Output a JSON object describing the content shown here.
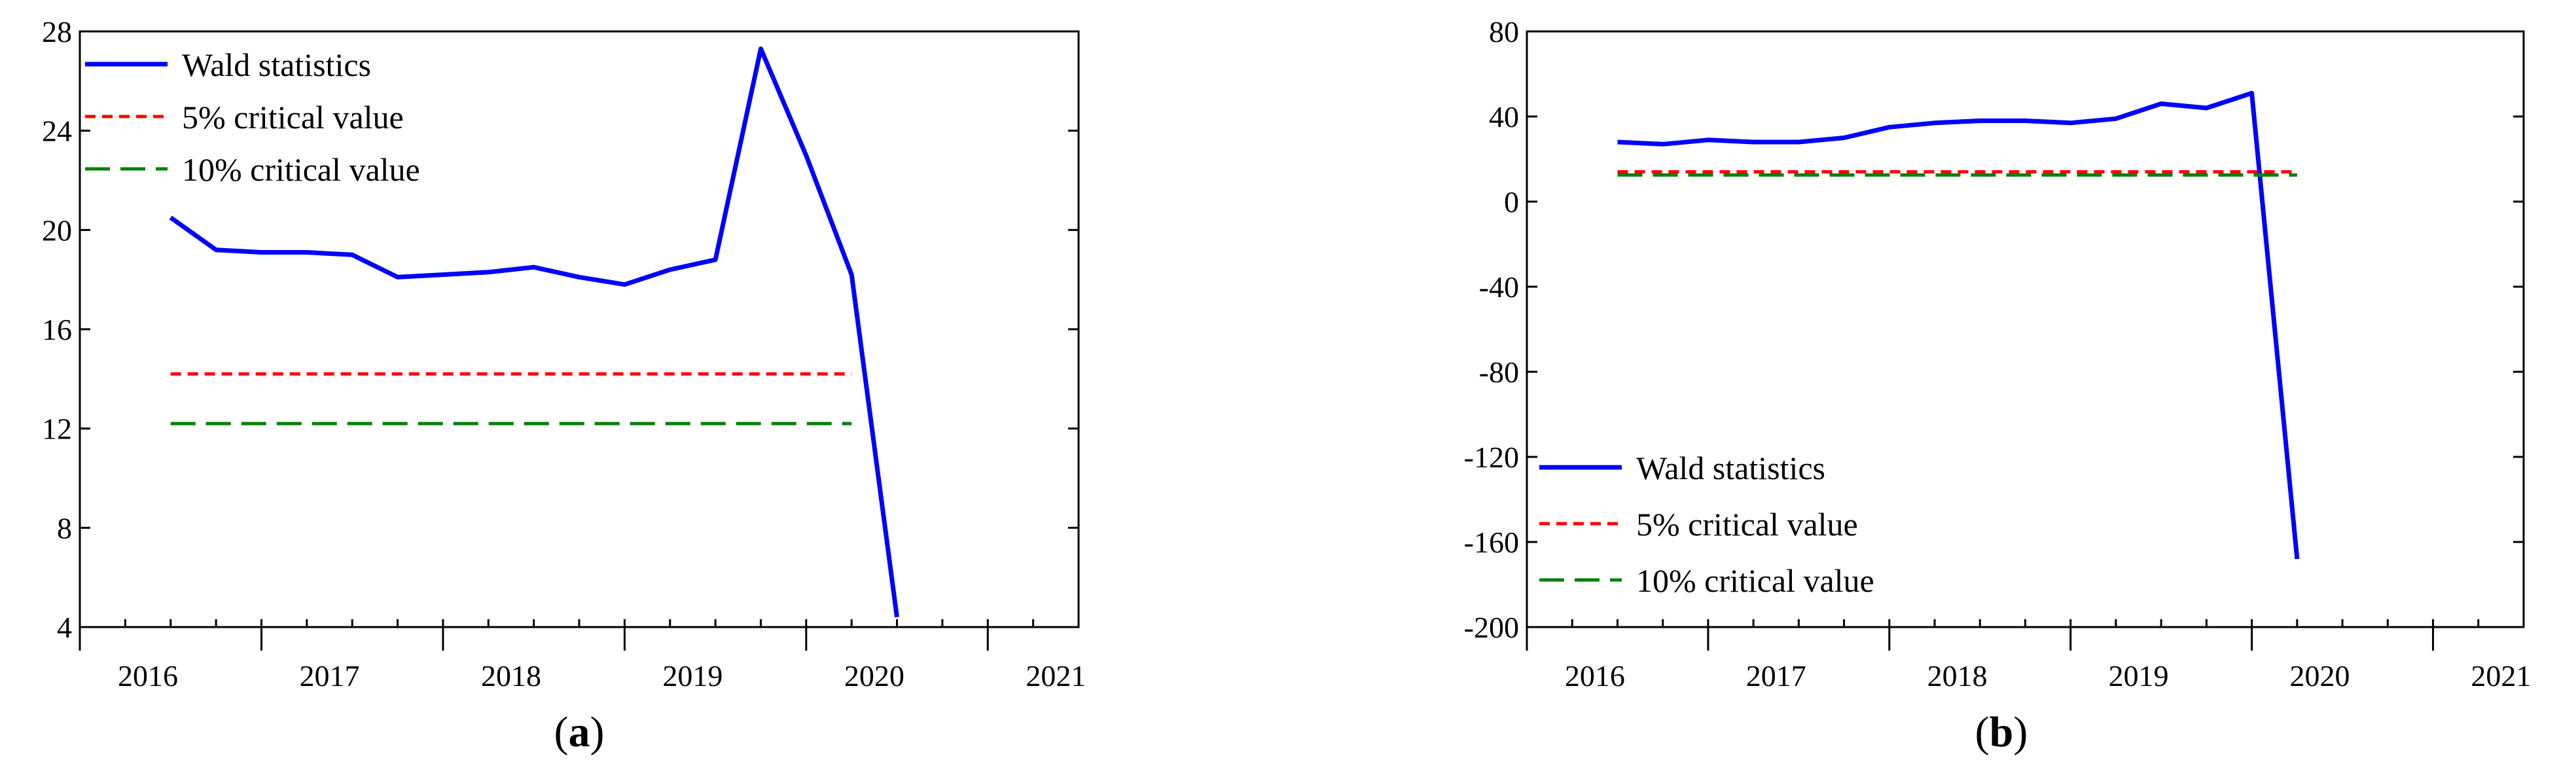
{
  "chart_data": [
    {
      "type": "line",
      "panel": "a",
      "caption": "a",
      "xlim": [
        2015.75,
        2021.25
      ],
      "ylim": [
        4,
        28
      ],
      "y_ticks": [
        4,
        8,
        12,
        16,
        20,
        24,
        28
      ],
      "x_ticks": [
        2016,
        2017,
        2018,
        2019,
        2020,
        2021
      ],
      "legend_position": "top-left",
      "grid": false,
      "series": [
        {
          "name": "Wald statistics",
          "color": "#0000ff",
          "style": "solid",
          "x": [
            2016.25,
            2016.5,
            2016.75,
            2017.0,
            2017.25,
            2017.5,
            2017.75,
            2018.0,
            2018.25,
            2018.5,
            2018.75,
            2019.0,
            2019.25,
            2019.5,
            2019.75,
            2020.0,
            2020.25
          ],
          "y": [
            20.5,
            19.2,
            19.1,
            19.1,
            19.0,
            18.1,
            18.2,
            18.3,
            18.5,
            18.1,
            17.8,
            18.4,
            18.8,
            27.3,
            23.0,
            18.2,
            4.4
          ]
        },
        {
          "name": "5% critical value",
          "color": "#ff0000",
          "style": "short-dash",
          "x": [
            2016.25,
            2020.0
          ],
          "y": [
            14.2,
            14.2
          ]
        },
        {
          "name": "10% critical value",
          "color": "#008000",
          "style": "long-dash",
          "x": [
            2016.25,
            2020.0
          ],
          "y": [
            12.2,
            12.2
          ]
        }
      ]
    },
    {
      "type": "line",
      "panel": "b",
      "caption": "b",
      "xlim": [
        2015.75,
        2021.25
      ],
      "ylim": [
        -200,
        80
      ],
      "y_ticks": [
        -200,
        -160,
        -120,
        -80,
        -40,
        0,
        40,
        80
      ],
      "x_ticks": [
        2016,
        2017,
        2018,
        2019,
        2020,
        2021
      ],
      "legend_position": "bottom-left",
      "grid": false,
      "series": [
        {
          "name": "Wald statistics",
          "color": "#0000ff",
          "style": "solid",
          "x": [
            2016.25,
            2016.5,
            2016.75,
            2017.0,
            2017.25,
            2017.5,
            2017.75,
            2018.0,
            2018.25,
            2018.5,
            2018.75,
            2019.0,
            2019.25,
            2019.5,
            2019.75,
            2020.0
          ],
          "y": [
            28,
            27,
            29,
            28,
            28,
            30,
            35,
            37,
            38,
            38,
            37,
            39,
            46,
            44,
            51,
            -168
          ]
        },
        {
          "name": "5% critical value",
          "color": "#ff0000",
          "style": "short-dash",
          "x": [
            2016.25,
            2020.0
          ],
          "y": [
            14,
            14
          ]
        },
        {
          "name": "10% critical value",
          "color": "#008000",
          "style": "long-dash",
          "x": [
            2016.25,
            2020.0
          ],
          "y": [
            12.5,
            12.5
          ]
        }
      ]
    }
  ]
}
